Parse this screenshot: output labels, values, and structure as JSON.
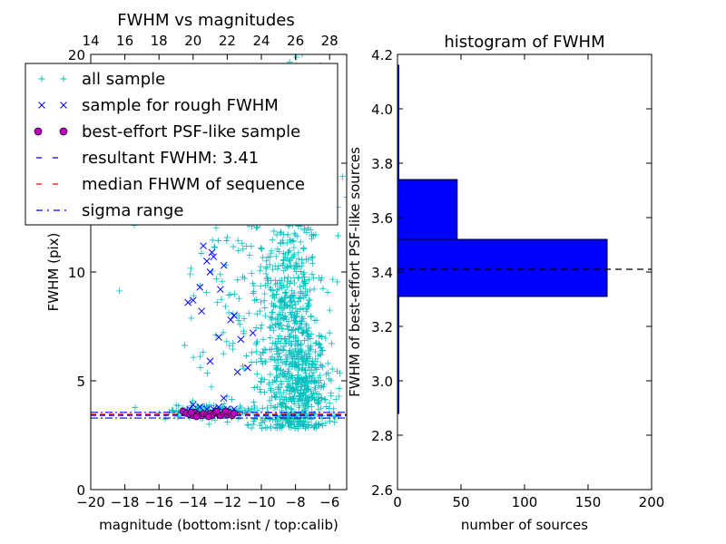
{
  "chart_data": [
    {
      "type": "scatter",
      "title": "FWHM vs magnitudes",
      "xlabel": "magnitude (bottom:isnt / top:calib)",
      "ylabel": "FWHM (pix)",
      "xlim": [
        -20,
        -5
      ],
      "ylim": [
        0,
        20
      ],
      "x_ticks": [
        -20,
        -18,
        -16,
        -14,
        -12,
        -10,
        -8,
        -6
      ],
      "x_tick_labels": [
        "−20",
        "−18",
        "−16",
        "−14",
        "−12",
        "−10",
        "−8",
        "−6"
      ],
      "y_ticks": [
        0,
        5,
        10,
        15,
        20
      ],
      "y_tick_labels": [
        "0",
        "5",
        "10",
        "",
        "20"
      ],
      "top_axis": {
        "ticks": [
          14,
          16,
          18,
          20,
          22,
          24,
          26,
          28
        ],
        "tick_labels": [
          "14",
          "16",
          "18",
          "20",
          "22",
          "24",
          "26",
          "28"
        ],
        "offset": 34
      },
      "legend": {
        "placement": "top-left",
        "entries": [
          {
            "label": "all sample",
            "marker": "plus",
            "color": "#00bfbf"
          },
          {
            "label": "sample for rough FWHM",
            "marker": "x",
            "color": "#0000ff"
          },
          {
            "label": "best-effort PSF-like sample",
            "marker": "circle",
            "color": "#bf00bf"
          },
          {
            "label": "resultant FWHM: 3.41",
            "marker": "dashed",
            "color": "#0000ff"
          },
          {
            "label": "median FHWM of sequence",
            "marker": "dashed",
            "color": "#ff0000"
          },
          {
            "label": "sigma range",
            "marker": "dashdot",
            "color": "#0000ff"
          }
        ]
      },
      "lines": [
        {
          "name": "resultant FWHM",
          "y": 3.41,
          "color": "#0000ff",
          "style": "dashed"
        },
        {
          "name": "median FHWM of sequence",
          "y": 3.46,
          "color": "#ff0000",
          "style": "dashed"
        },
        {
          "name": "sigma range upper",
          "y": 3.55,
          "color": "#0000ff",
          "style": "dashdot"
        },
        {
          "name": "sigma range lower",
          "y": 3.29,
          "color": "#0000ff",
          "style": "dashdot"
        }
      ],
      "series": [
        {
          "name": "sample for rough FWHM",
          "marker": "x",
          "color": "#0000ff",
          "points": [
            [
              -14.5,
              3.6
            ],
            [
              -14.2,
              3.7
            ],
            [
              -14.0,
              3.9
            ],
            [
              -13.6,
              3.8
            ],
            [
              -13.2,
              3.7
            ],
            [
              -12.8,
              3.7
            ],
            [
              -12.5,
              3.8
            ],
            [
              -12.0,
              3.7
            ],
            [
              -11.6,
              3.7
            ],
            [
              -14.3,
              8.6
            ],
            [
              -14.0,
              8.7
            ],
            [
              -13.5,
              8.2
            ],
            [
              -13.4,
              11.2
            ],
            [
              -13.2,
              10.5
            ],
            [
              -13.0,
              10.0
            ],
            [
              -12.9,
              10.9
            ],
            [
              -12.8,
              10.7
            ],
            [
              -12.7,
              12.8
            ],
            [
              -12.4,
              9.2
            ],
            [
              -12.2,
              10.3
            ],
            [
              -13.6,
              9.3
            ],
            [
              -13.0,
              5.9
            ],
            [
              -12.5,
              7.0
            ],
            [
              -11.8,
              7.8
            ],
            [
              -11.6,
              8.0
            ],
            [
              -11.4,
              5.4
            ],
            [
              -11.2,
              6.9
            ],
            [
              -12.2,
              4.2
            ],
            [
              -10.5,
              7.2
            ],
            [
              -10.8,
              5.6
            ]
          ]
        },
        {
          "name": "best-effort PSF-like sample",
          "marker": "circle",
          "color": "#bf00bf",
          "points": [
            [
              -14.6,
              3.6
            ],
            [
              -14.4,
              3.5
            ],
            [
              -14.2,
              3.45
            ],
            [
              -14.0,
              3.4
            ],
            [
              -13.9,
              3.55
            ],
            [
              -13.7,
              3.45
            ],
            [
              -13.5,
              3.4
            ],
            [
              -13.4,
              3.5
            ],
            [
              -13.2,
              3.45
            ],
            [
              -13.0,
              3.5
            ],
            [
              -12.9,
              3.4
            ],
            [
              -12.7,
              3.55
            ],
            [
              -12.5,
              3.45
            ],
            [
              -12.4,
              3.4
            ],
            [
              -12.2,
              3.5
            ],
            [
              -12.0,
              3.45
            ],
            [
              -11.9,
              3.55
            ],
            [
              -11.7,
              3.4
            ],
            [
              -11.6,
              3.5
            ],
            [
              -13.1,
              3.35
            ],
            [
              -12.6,
              3.6
            ],
            [
              -13.8,
              3.35
            ],
            [
              -12.1,
              3.6
            ],
            [
              -14.1,
              3.55
            ]
          ]
        }
      ],
      "scatter_clouds": [
        {
          "name": "all sample",
          "marker": "plus",
          "color": "#00bfbf",
          "center": [
            -8.4,
            7.0
          ],
          "spread": [
            0.9,
            3.2
          ],
          "count": 650
        },
        {
          "name": "all sample",
          "marker": "plus",
          "color": "#00bfbf",
          "center": [
            -7.3,
            4.5
          ],
          "spread": [
            0.8,
            1.2
          ],
          "count": 250
        },
        {
          "name": "all sample",
          "marker": "plus",
          "color": "#00bfbf",
          "center": [
            -10.8,
            8.5
          ],
          "spread": [
            2.0,
            4.0
          ],
          "count": 180
        },
        {
          "name": "all sample",
          "marker": "plus",
          "color": "#00bfbf",
          "center": [
            -9.0,
            16.0
          ],
          "spread": [
            1.5,
            3.0
          ],
          "count": 160
        },
        {
          "name": "all sample",
          "marker": "plus",
          "color": "#00bfbf",
          "center": [
            -13.0,
            3.6
          ],
          "spread": [
            1.4,
            0.15
          ],
          "count": 120
        }
      ]
    },
    {
      "type": "bar",
      "orientation": "horizontal",
      "title": "histogram of FWHM",
      "xlabel": "number of sources",
      "ylabel": "FWHM of best-effort PSF-like sources",
      "xlim": [
        0,
        200
      ],
      "ylim": [
        2.6,
        4.2
      ],
      "x_ticks": [
        0,
        50,
        100,
        150,
        200
      ],
      "x_tick_labels": [
        "0",
        "50",
        "100",
        "150",
        "200"
      ],
      "y_ticks": [
        2.6,
        2.8,
        3.0,
        3.2,
        3.4,
        3.6,
        3.8,
        4.0,
        4.2
      ],
      "y_tick_labels": [
        "2.6",
        "2.8",
        "3.0",
        "3.2",
        "3.4",
        "3.6",
        "3.8",
        "4.0",
        "4.2"
      ],
      "bins": [
        {
          "from": 2.88,
          "to": 3.09,
          "count": 1
        },
        {
          "from": 3.09,
          "to": 3.31,
          "count": 1
        },
        {
          "from": 3.31,
          "to": 3.52,
          "count": 165
        },
        {
          "from": 3.52,
          "to": 3.74,
          "count": 47
        },
        {
          "from": 3.74,
          "to": 3.95,
          "count": 1
        },
        {
          "from": 3.95,
          "to": 4.16,
          "count": 1
        }
      ],
      "bar_color": "#0000ff",
      "reference_line": {
        "y": 3.41,
        "style": "dashed",
        "color": "#000000"
      }
    }
  ]
}
